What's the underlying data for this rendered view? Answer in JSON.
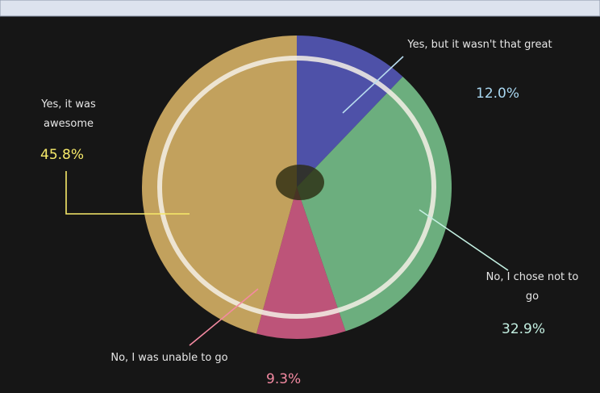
{
  "chart_data": {
    "type": "pie",
    "categories": [
      "Yes, but it wasn't that great",
      "No, I chose not to go",
      "No, I was unable to go",
      "Yes, it was awesome"
    ],
    "values": [
      12.0,
      32.9,
      9.3,
      45.8
    ],
    "value_labels": [
      "12.0%",
      "32.9%",
      "9.3%",
      "45.8%"
    ],
    "colors": [
      "#5a5ec8",
      "#7fd095",
      "#e2628f",
      "#e8bf6c"
    ],
    "label_colors": [
      "#a9d8f2",
      "#c4f0e2",
      "#f48aa2",
      "#f7ea6a"
    ]
  }
}
